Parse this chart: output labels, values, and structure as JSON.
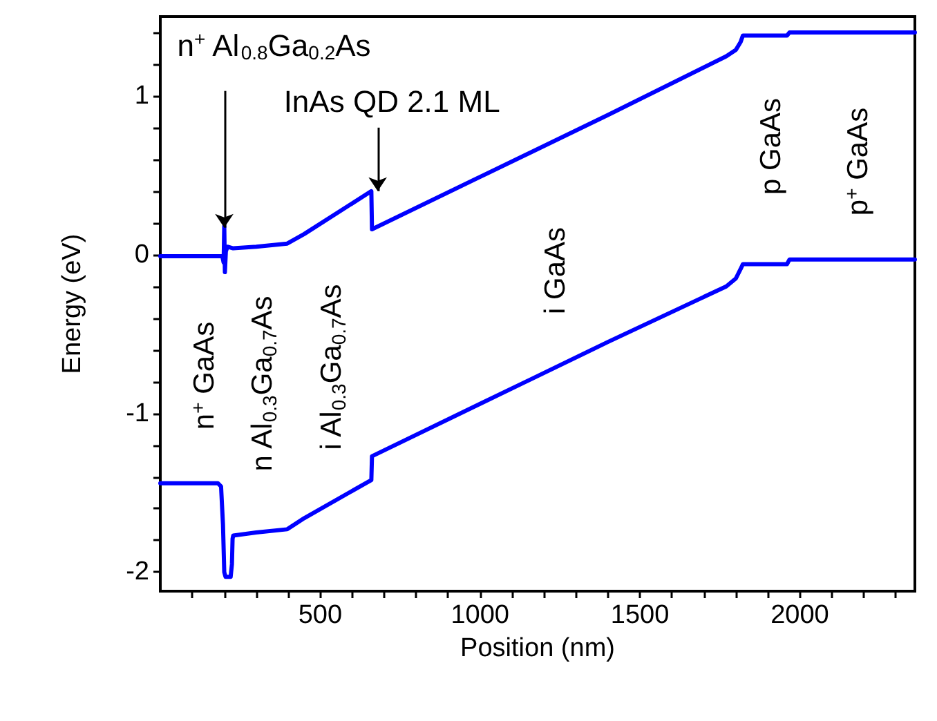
{
  "chart_data": {
    "type": "line",
    "xlabel": "Position (nm)",
    "ylabel": "Energy (eV)",
    "xlim": [
      0,
      2360
    ],
    "ylim": [
      -2.12,
      1.5
    ],
    "xticks": [
      {
        "value": 100,
        "label": null
      },
      {
        "value": 200,
        "label": null
      },
      {
        "value": 300,
        "label": null
      },
      {
        "value": 400,
        "label": null
      },
      500,
      {
        "value": 600,
        "label": null
      },
      {
        "value": 700,
        "label": null
      },
      {
        "value": 800,
        "label": null
      },
      {
        "value": 900,
        "label": null
      },
      1000,
      {
        "value": 1100,
        "label": null
      },
      {
        "value": 1200,
        "label": null
      },
      {
        "value": 1300,
        "label": null
      },
      {
        "value": 1400,
        "label": null
      },
      1500,
      {
        "value": 1600,
        "label": null
      },
      {
        "value": 1700,
        "label": null
      },
      {
        "value": 1800,
        "label": null
      },
      {
        "value": 1900,
        "label": null
      },
      2000,
      {
        "value": 2100,
        "label": null
      },
      {
        "value": 2200,
        "label": null
      },
      {
        "value": 2300,
        "label": null
      }
    ],
    "yticks": [
      -2,
      {
        "value": -1.8,
        "label": null
      },
      {
        "value": -1.6,
        "label": null
      },
      {
        "value": -1.4,
        "label": null
      },
      {
        "value": -1.2,
        "label": null
      },
      -1,
      {
        "value": -0.8,
        "label": null
      },
      {
        "value": -0.6,
        "label": null
      },
      {
        "value": -0.4,
        "label": null
      },
      {
        "value": -0.2,
        "label": null
      },
      0,
      {
        "value": 0.2,
        "label": null
      },
      {
        "value": 0.4,
        "label": null
      },
      {
        "value": 0.6,
        "label": null
      },
      {
        "value": 0.8,
        "label": null
      },
      1,
      {
        "value": 1.2,
        "label": null
      },
      {
        "value": 1.4,
        "label": null
      }
    ],
    "grid": false,
    "marker": "none",
    "line_style": "solid",
    "series": [
      {
        "color": "#0000ff",
        "x": [
          0,
          150,
          194,
          198,
          200,
          202,
          205,
          210,
          228,
          300,
          397,
          450,
          660,
          662,
          1000,
          1400,
          1770,
          1800,
          1815,
          1822,
          1960,
          1968,
          2360
        ],
        "values": [
          -0.01,
          -0.01,
          -0.01,
          -0.05,
          0.18,
          -0.11,
          0.02,
          0.05,
          0.04,
          0.05,
          0.07,
          0.13,
          0.4,
          0.16,
          0.49,
          0.88,
          1.25,
          1.29,
          1.34,
          1.38,
          1.38,
          1.4,
          1.4
        ]
      },
      {
        "color": "#0000ff",
        "x": [
          0,
          180,
          190,
          196,
          200,
          204,
          210,
          220,
          224,
          226,
          228,
          300,
          397,
          450,
          660,
          662,
          1000,
          1400,
          1770,
          1800,
          1815,
          1822,
          1960,
          1968,
          2360
        ],
        "values": [
          -1.44,
          -1.44,
          -1.46,
          -1.7,
          -2.0,
          -2.03,
          -2.03,
          -2.03,
          -1.95,
          -1.79,
          -1.77,
          -1.75,
          -1.73,
          -1.66,
          -1.42,
          -1.27,
          -0.94,
          -0.55,
          -0.2,
          -0.15,
          -0.09,
          -0.06,
          -0.06,
          -0.03,
          -0.03
        ]
      }
    ],
    "annotations": [
      {
        "text": "n$^{+}$ Al$_{0.8}$Ga$_{0.2}$As",
        "x": 200,
        "y": 0.17
      },
      {
        "text": "InAs QD 2.1 ML",
        "x": 680,
        "y": 0.4
      },
      "n$^{+}$ GaAs",
      "n Al$_{0.3}$Ga$_{0.7}$As",
      "i Al$_{0.3}$Ga$_{0.7}$As",
      "i GaAs",
      "p GaAs",
      "p$^{+}$ GaAs"
    ]
  }
}
